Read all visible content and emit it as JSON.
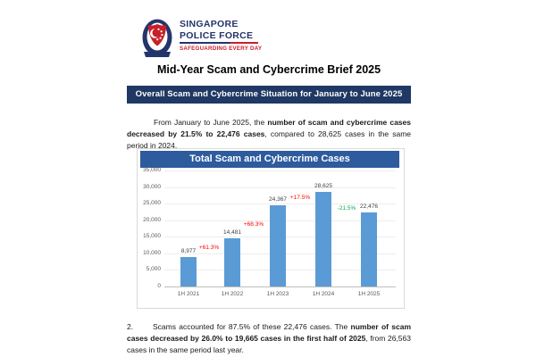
{
  "logo": {
    "line1": "SINGAPORE",
    "line2": "POLICE FORCE",
    "tagline": "SAFEGUARDING EVERY DAY"
  },
  "document": {
    "title": "Mid-Year Scam and Cybercrime Brief 2025",
    "section_banner": "Overall Scam and Cybercrime Situation for January to June 2025"
  },
  "paragraphs": [
    {
      "number": "",
      "runs": [
        {
          "text": "From January to June 2025, the ",
          "bold": false
        },
        {
          "text": "number of scam and cybercrime cases decreased by 21.5% to 22,476 cases",
          "bold": true
        },
        {
          "text": ", compared to 28,625 cases in the same period in 2024.",
          "bold": false
        }
      ]
    },
    {
      "number": "2.",
      "runs": [
        {
          "text": "Scams accounted for 87.5% of these 22,476 cases. The ",
          "bold": false
        },
        {
          "text": "number of scam cases decreased by 26.0% to 19,665 cases in the first half of 2025",
          "bold": true
        },
        {
          "text": ", from 26,563 cases in the same period last year.",
          "bold": false
        }
      ]
    }
  ],
  "chart_data": {
    "type": "bar",
    "title": "Total Scam and Cybercrime Cases",
    "categories": [
      "1H 2021",
      "1H 2022",
      "1H 2023",
      "1H 2024",
      "1H 2025"
    ],
    "values": [
      8977,
      14481,
      24367,
      28625,
      22476
    ],
    "value_labels": [
      "8,977",
      "14,481",
      "24,367",
      "28,625",
      "22,476"
    ],
    "changes": [
      {
        "label": "+61.3%",
        "color": "#FF0000"
      },
      {
        "label": "+68.3%",
        "color": "#FF0000"
      },
      {
        "label": "+17.5%",
        "color": "#FF0000"
      },
      {
        "label": "-21.5%",
        "color": "#00B050"
      }
    ],
    "xlabel": "",
    "ylabel": "",
    "ylim": [
      0,
      35000
    ],
    "ytick_step": 5000,
    "ytick_labels": [
      "0",
      "5,000",
      "10,000",
      "15,000",
      "20,000",
      "25,000",
      "30,000",
      "35,000"
    ],
    "grid": true,
    "legend": "none",
    "bar_color": "#5B9BD5"
  },
  "colors": {
    "brand_navy": "#24356B",
    "brand_red": "#C8202A",
    "banner_navy": "#1F3864",
    "chart_header_blue": "#2E5B9E",
    "bar_blue": "#5B9BD5",
    "increase_red": "#FF0000",
    "decrease_green": "#00B050"
  }
}
